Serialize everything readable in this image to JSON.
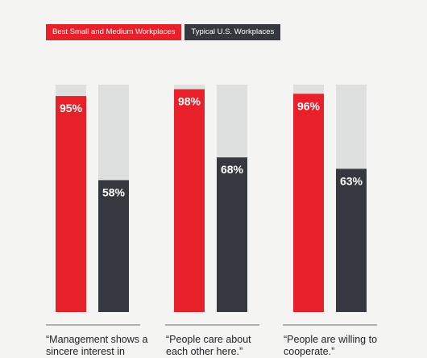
{
  "chart_data": {
    "type": "bar",
    "ylim": [
      0,
      100
    ],
    "series": [
      {
        "name": "Best Small and Medium Workplaces",
        "color": "#e8202a",
        "values": [
          95,
          98,
          96
        ]
      },
      {
        "name": "Typical U.S. Workplaces",
        "color": "#35393f",
        "values": [
          58,
          68,
          63
        ]
      }
    ],
    "value_labels": [
      [
        "95%",
        "98%",
        "96%"
      ],
      [
        "58%",
        "68%",
        "63%"
      ]
    ],
    "categories": [
      "“Management shows a sincere interest in",
      "“People care about each other here.”",
      "“People are willing to cooperate.”"
    ],
    "track_color": "#dde0df"
  }
}
